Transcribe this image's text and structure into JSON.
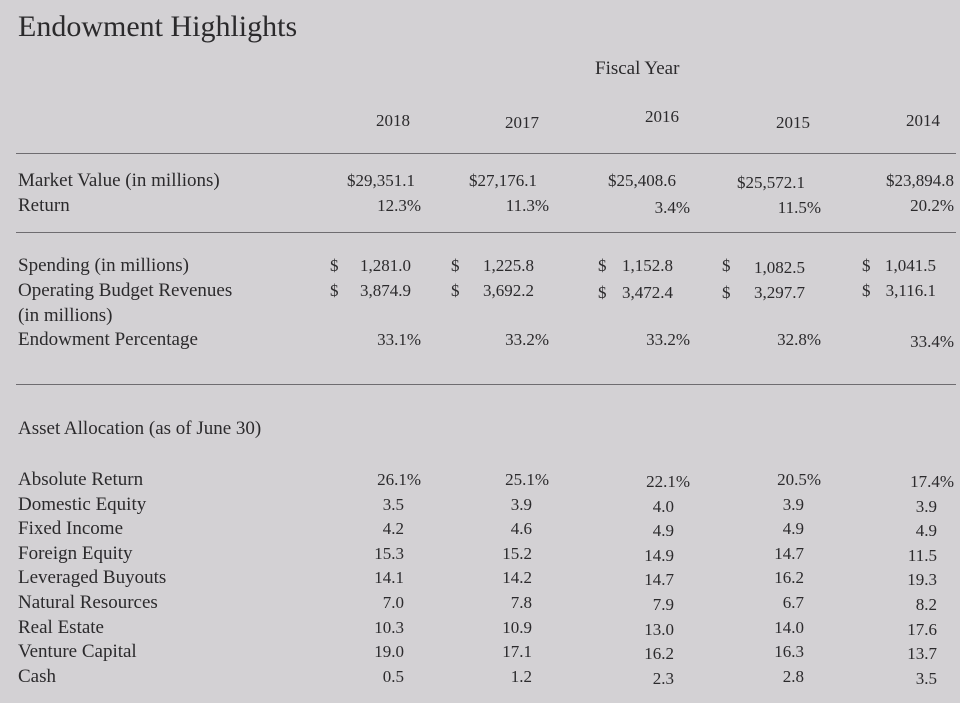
{
  "title": "Endowment Highlights",
  "header": {
    "fiscal_year": "Fiscal Year"
  },
  "years": [
    "2018",
    "2017",
    "2016",
    "2015",
    "2014"
  ],
  "section1": {
    "market_value": {
      "label": "Market Value (in millions)",
      "values": [
        "$29,351.1",
        "$27,176.1",
        "$25,408.6",
        "$25,572.1",
        "$23,894.8"
      ]
    },
    "return": {
      "label": "Return",
      "values": [
        "12.3%",
        "11.3%",
        "3.4%",
        "11.5%",
        "20.2%"
      ]
    }
  },
  "section2": {
    "spending": {
      "label": "Spending (in millions)",
      "values": [
        "1,281.0",
        "1,225.8",
        "1,152.8",
        "1,082.5",
        "1,041.5"
      ]
    },
    "op_budget": {
      "label": "Operating Budget Revenues",
      "label2": "(in millions)",
      "values": [
        "3,874.9",
        "3,692.2",
        "3,472.4",
        "3,297.7",
        "3,116.1"
      ]
    },
    "endowment_pct": {
      "label": "Endowment Percentage",
      "values": [
        "33.1%",
        "33.2%",
        "33.2%",
        "32.8%",
        "33.4%"
      ]
    },
    "currency": "$"
  },
  "allocation": {
    "heading": "Asset Allocation (as of June 30)",
    "rows": [
      {
        "label": "Absolute Return",
        "values": [
          "26.1%",
          "25.1%",
          "22.1%",
          "20.5%",
          "17.4%"
        ]
      },
      {
        "label": "Domestic Equity",
        "values": [
          "3.5",
          "3.9",
          "4.0",
          "3.9",
          "3.9"
        ]
      },
      {
        "label": "Fixed Income",
        "values": [
          "4.2",
          "4.6",
          "4.9",
          "4.9",
          "4.9"
        ]
      },
      {
        "label": "Foreign Equity",
        "values": [
          "15.3",
          "15.2",
          "14.9",
          "14.7",
          "11.5"
        ]
      },
      {
        "label": "Leveraged Buyouts",
        "values": [
          "14.1",
          "14.2",
          "14.7",
          "16.2",
          "19.3"
        ]
      },
      {
        "label": "Natural Resources",
        "values": [
          "7.0",
          "7.8",
          "7.9",
          "6.7",
          "8.2"
        ]
      },
      {
        "label": "Real Estate",
        "values": [
          "10.3",
          "10.9",
          "13.0",
          "14.0",
          "17.6"
        ]
      },
      {
        "label": "Venture Capital",
        "values": [
          "19.0",
          "17.1",
          "16.2",
          "16.3",
          "13.7"
        ]
      },
      {
        "label": "Cash",
        "values": [
          "0.5",
          "1.2",
          "2.3",
          "2.8",
          "3.5"
        ]
      }
    ]
  }
}
